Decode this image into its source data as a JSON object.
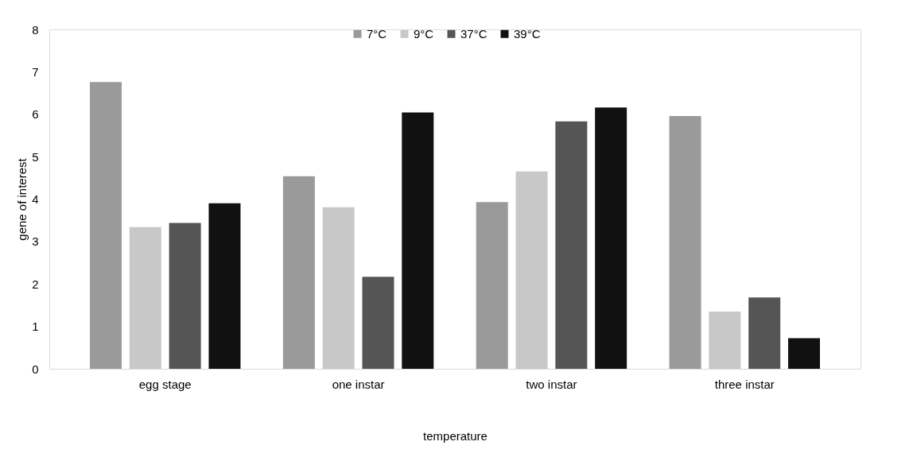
{
  "chart_data": {
    "type": "bar",
    "xlabel": "temperature",
    "ylabel": "gene of interest",
    "categories": [
      "egg stage",
      "one instar",
      "two instar",
      "three instar"
    ],
    "series": [
      {
        "name": "7°C",
        "color": "#9a9a9a",
        "values": [
          6.76,
          4.54,
          3.93,
          5.96
        ]
      },
      {
        "name": "9°C",
        "color": "#c8c8c8",
        "values": [
          3.34,
          3.81,
          4.65,
          1.35
        ]
      },
      {
        "name": "37°C",
        "color": "#555555",
        "values": [
          3.44,
          2.17,
          5.83,
          1.68
        ]
      },
      {
        "name": "39°C",
        "color": "#111111",
        "values": [
          3.9,
          6.04,
          6.16,
          0.72
        ]
      }
    ],
    "ylim": [
      0,
      8
    ],
    "yticks": [
      0,
      1,
      2,
      3,
      4,
      5,
      6,
      7,
      8
    ],
    "grid": false,
    "legend": "top"
  }
}
